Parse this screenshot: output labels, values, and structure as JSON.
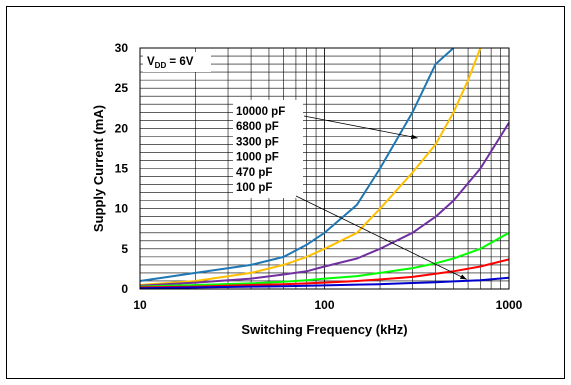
{
  "chart_data": {
    "type": "line",
    "title": "",
    "xlabel": "Switching Frequency (kHz)",
    "ylabel": "Supply Current (mA)",
    "xscale": "log",
    "xlim": [
      10,
      1000
    ],
    "ylim": [
      0,
      30
    ],
    "xticks": [
      "10",
      "100",
      "1000"
    ],
    "yticks": [
      "0",
      "5",
      "10",
      "15",
      "20",
      "25",
      "30"
    ],
    "grid": true,
    "condition": {
      "main": "V",
      "sub": "DD",
      "rest": " = 6V"
    },
    "legend_labels": [
      "10000 pF",
      "6800 pF",
      "3300 pF",
      "1000 pF",
      "470 pF",
      "100 pF"
    ],
    "series": [
      {
        "name": "10000 pF",
        "color": "#1f77b4",
        "x": [
          10,
          20,
          40,
          60,
          80,
          100,
          150,
          200,
          300,
          400,
          500
        ],
        "y": [
          1.0,
          2.0,
          3.0,
          4.0,
          5.5,
          7.0,
          10.5,
          15.0,
          22.0,
          28.0,
          30.0
        ]
      },
      {
        "name": "6800 pF",
        "color": "#ffc000",
        "x": [
          10,
          20,
          40,
          60,
          80,
          100,
          150,
          200,
          300,
          400,
          500,
          600,
          700
        ],
        "y": [
          0.5,
          1.0,
          2.0,
          3.0,
          4.0,
          5.0,
          7.0,
          10.0,
          14.5,
          18.0,
          22.0,
          26.0,
          30.0
        ]
      },
      {
        "name": "3300 pF",
        "color": "#7030a0",
        "x": [
          10,
          20,
          40,
          60,
          80,
          100,
          150,
          200,
          300,
          400,
          500,
          700,
          1000
        ],
        "y": [
          0.4,
          0.8,
          1.3,
          1.8,
          2.2,
          2.8,
          3.8,
          5.0,
          7.0,
          9.0,
          11.0,
          15.0,
          20.7
        ]
      },
      {
        "name": "1000 pF",
        "color": "#00ff00",
        "x": [
          10,
          20,
          40,
          60,
          80,
          100,
          150,
          200,
          300,
          400,
          500,
          700,
          1000
        ],
        "y": [
          0.3,
          0.5,
          0.7,
          0.9,
          1.1,
          1.3,
          1.6,
          2.0,
          2.6,
          3.2,
          3.8,
          5.0,
          7.0
        ]
      },
      {
        "name": "470 pF",
        "color": "#ff0000",
        "x": [
          10,
          20,
          40,
          60,
          80,
          100,
          150,
          200,
          300,
          400,
          500,
          700,
          1000
        ],
        "y": [
          0.2,
          0.3,
          0.5,
          0.6,
          0.7,
          0.8,
          1.0,
          1.2,
          1.5,
          1.9,
          2.2,
          2.8,
          3.7
        ]
      },
      {
        "name": "100 pF",
        "color": "#0000cc",
        "x": [
          10,
          20,
          40,
          60,
          80,
          100,
          150,
          200,
          300,
          400,
          500,
          700,
          1000
        ],
        "y": [
          0.1,
          0.2,
          0.3,
          0.35,
          0.4,
          0.45,
          0.55,
          0.6,
          0.75,
          0.85,
          0.95,
          1.1,
          1.4
        ]
      }
    ]
  }
}
